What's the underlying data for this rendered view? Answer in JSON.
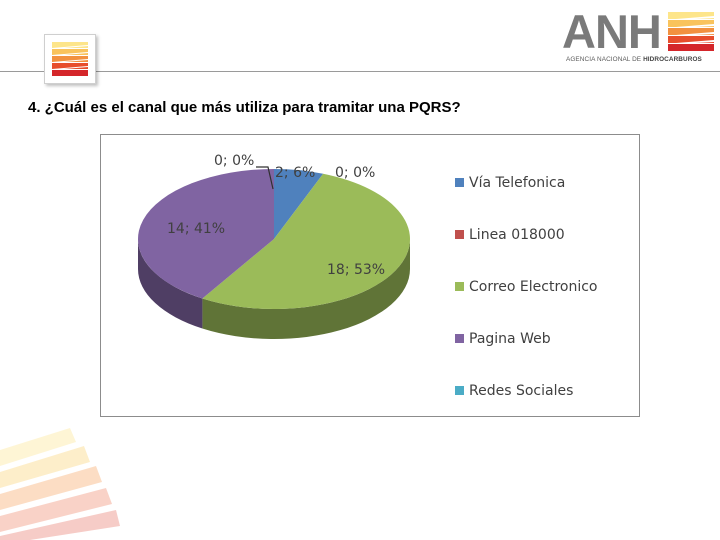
{
  "header": {
    "brand": "ANH",
    "brand_sub_regular": "AGENCIA NACIONAL DE ",
    "brand_sub_bold": "HIDROCARBUROS"
  },
  "question": "4. ¿Cuál es el canal que más utiliza para tramitar una PQRS?",
  "colors": {
    "stripes": [
      "#fde58a",
      "#f9c35c",
      "#f2913f",
      "#e74e2c",
      "#d4262a"
    ],
    "chart_border": "#8c8c8c"
  },
  "chart_data": {
    "type": "pie",
    "style": "3d",
    "legend_position": "right",
    "categories": [
      "Vía Telefonica",
      "Linea 018000",
      "Correo Electronico",
      "Pagina Web",
      "Redes Sociales"
    ],
    "values": [
      2,
      0,
      18,
      14,
      0
    ],
    "labels": [
      "2; 6%",
      "0; 0%",
      "18; 53%",
      "14; 41%",
      "0; 0%"
    ],
    "colors": [
      "#4f81bd",
      "#c0504d",
      "#9bbb59",
      "#8064a2",
      "#4bacc6"
    ]
  }
}
